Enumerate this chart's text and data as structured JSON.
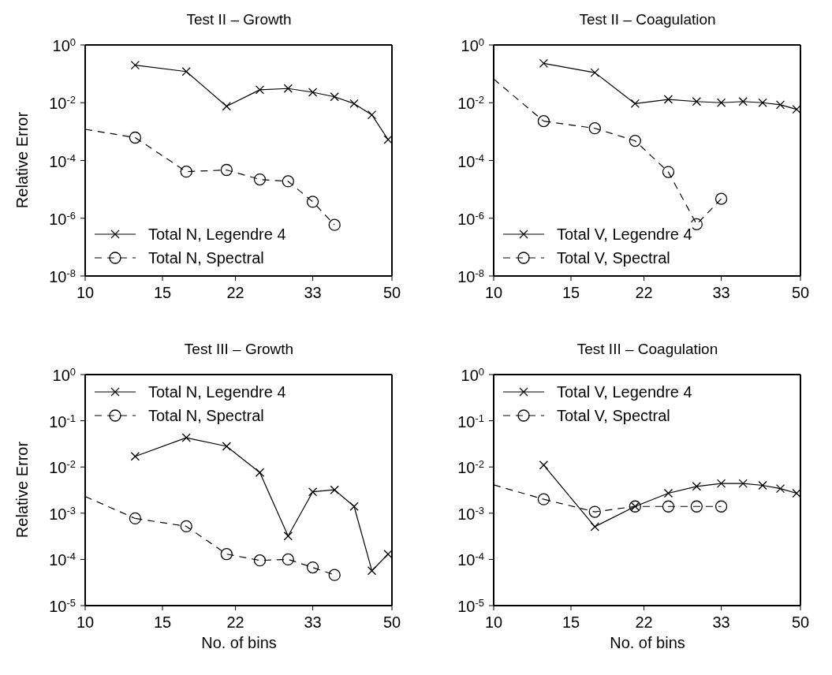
{
  "chart_data": [
    {
      "type": "line",
      "title": "Test II – Growth",
      "ylabel": "Relative Error",
      "log": "xy",
      "xlim": [
        10,
        50
      ],
      "xticks": [
        10,
        15,
        22,
        33,
        50
      ],
      "ylim": [
        1e-08,
        1
      ],
      "yticks": [
        {
          "value": 1e-08,
          "label": "10$^{-8}$"
        },
        {
          "value": 1e-06,
          "label": "10$^{-6}$"
        },
        {
          "value": 0.0001,
          "label": "10$^{-4}$"
        },
        {
          "value": 0.01,
          "label": "10$^{-2}$"
        },
        {
          "value": 1,
          "label": "10$^{0}$"
        }
      ],
      "legend": "bottom left",
      "series": [
        {
          "name": "Total N, Legendre 4",
          "color": "#000000",
          "marker": "cross",
          "line_style": "solid",
          "x": [
            13,
            17,
            21,
            25,
            29,
            33,
            37,
            41,
            45,
            49
          ],
          "values": [
            0.2,
            0.12,
            0.0075,
            0.028,
            0.031,
            0.023,
            0.016,
            0.0093,
            0.0038,
            0.00053
          ]
        },
        {
          "name": "Total N, Spectral",
          "color": "#000000",
          "marker": "circle",
          "line_style": "dashed",
          "x": [
            13,
            17,
            21,
            25,
            29,
            33,
            37
          ],
          "values": [
            0.00062,
            4.1e-05,
            4.7e-05,
            2.2e-05,
            1.9e-05,
            3.7e-06,
            5.9e-07
          ]
        },
        {
          "color": "#000000",
          "marker": "none",
          "line_style": "dashed",
          "x": [
            10,
            13
          ],
          "values": [
            0.0012,
            0.00062
          ]
        }
      ]
    },
    {
      "type": "line",
      "title": "Test II – Coagulation",
      "log": "xy",
      "xlim": [
        10,
        50
      ],
      "xticks": [
        10,
        15,
        22,
        33,
        50
      ],
      "ylim": [
        1e-08,
        1
      ],
      "yticks": [
        {
          "value": 1e-08,
          "label": "10$^{-8}$"
        },
        {
          "value": 1e-06,
          "label": "10$^{-6}$"
        },
        {
          "value": 0.0001,
          "label": "10$^{-4}$"
        },
        {
          "value": 0.01,
          "label": "10$^{-2}$"
        },
        {
          "value": 1,
          "label": "10$^{0}$"
        }
      ],
      "legend": "bottom left",
      "series": [
        {
          "name": "Total V, Legendre 4",
          "color": "#000000",
          "marker": "cross",
          "line_style": "solid",
          "x": [
            13,
            17,
            21,
            25,
            29,
            33,
            37,
            41,
            45,
            49
          ],
          "values": [
            0.23,
            0.11,
            0.0093,
            0.013,
            0.011,
            0.01,
            0.011,
            0.01,
            0.0085,
            0.0059
          ]
        },
        {
          "name": "Total V, Spectral",
          "color": "#000000",
          "marker": "circle",
          "line_style": "dashed",
          "x": [
            13,
            17,
            21,
            25,
            29,
            33
          ],
          "values": [
            0.0023,
            0.0013,
            0.00048,
            4e-05,
            6.2e-07,
            4.7e-06
          ]
        },
        {
          "color": "#000000",
          "marker": "none",
          "line_style": "dashed",
          "x": [
            10,
            13
          ],
          "values": [
            0.066,
            0.0023
          ]
        }
      ]
    },
    {
      "type": "line",
      "title": "Test III – Growth",
      "xlabel": "No. of bins",
      "ylabel": "Relative Error",
      "log": "xy",
      "xlim": [
        10,
        50
      ],
      "xticks": [
        10,
        15,
        22,
        33,
        50
      ],
      "ylim": [
        1e-05,
        1
      ],
      "yticks": [
        {
          "value": 1e-05,
          "label": "10$^{-5}$"
        },
        {
          "value": 0.0001,
          "label": "10$^{-4}$"
        },
        {
          "value": 0.001,
          "label": "10$^{-3}$"
        },
        {
          "value": 0.01,
          "label": "10$^{-2}$"
        },
        {
          "value": 0.1,
          "label": "10$^{-1}$"
        },
        {
          "value": 1,
          "label": "10$^{0}$"
        }
      ],
      "legend": "top left",
      "series": [
        {
          "name": "Total N, Legendre 4",
          "color": "#000000",
          "marker": "cross",
          "line_style": "solid",
          "x": [
            13,
            17,
            21,
            25,
            29,
            33,
            37,
            41,
            45,
            49
          ],
          "values": [
            0.017,
            0.043,
            0.028,
            0.0076,
            0.00032,
            0.0029,
            0.0032,
            0.0014,
            5.7e-05,
            0.00013
          ]
        },
        {
          "name": "Total N, Spectral",
          "color": "#000000",
          "marker": "circle",
          "line_style": "dashed",
          "x": [
            13,
            17,
            21,
            25,
            29,
            33,
            37
          ],
          "values": [
            0.00077,
            0.00052,
            0.00013,
            9.5e-05,
            0.0001,
            6.7e-05,
            4.6e-05
          ]
        },
        {
          "color": "#000000",
          "marker": "none",
          "line_style": "dashed",
          "x": [
            10,
            13
          ],
          "values": [
            0.0023,
            0.00077
          ]
        }
      ]
    },
    {
      "type": "line",
      "title": "Test III – Coagulation",
      "xlabel": "No. of bins",
      "log": "xy",
      "xlim": [
        10,
        50
      ],
      "xticks": [
        10,
        15,
        22,
        33,
        50
      ],
      "ylim": [
        1e-05,
        1
      ],
      "yticks": [
        {
          "value": 1e-05,
          "label": "10$^{-5}$"
        },
        {
          "value": 0.0001,
          "label": "10$^{-4}$"
        },
        {
          "value": 0.001,
          "label": "10$^{-3}$"
        },
        {
          "value": 0.01,
          "label": "10$^{-2}$"
        },
        {
          "value": 0.1,
          "label": "10$^{-1}$"
        },
        {
          "value": 1,
          "label": "10$^{0}$"
        }
      ],
      "legend": "top left",
      "series": [
        {
          "name": "Total V, Legendre 4",
          "color": "#000000",
          "marker": "cross",
          "line_style": "solid",
          "x": [
            13,
            17,
            21,
            25,
            29,
            33,
            37,
            41,
            45,
            49
          ],
          "values": [
            0.011,
            0.00051,
            0.0014,
            0.0027,
            0.0038,
            0.0044,
            0.0044,
            0.004,
            0.0034,
            0.0027
          ]
        },
        {
          "name": "Total V, Spectral",
          "color": "#000000",
          "marker": "circle",
          "line_style": "dashed",
          "x": [
            13,
            17,
            21,
            25,
            29,
            33
          ],
          "values": [
            0.002,
            0.00107,
            0.0014,
            0.0014,
            0.0014,
            0.0014
          ]
        },
        {
          "color": "#000000",
          "marker": "none",
          "line_style": "dashed",
          "x": [
            10,
            13
          ],
          "values": [
            0.0041,
            0.002
          ]
        }
      ]
    }
  ]
}
